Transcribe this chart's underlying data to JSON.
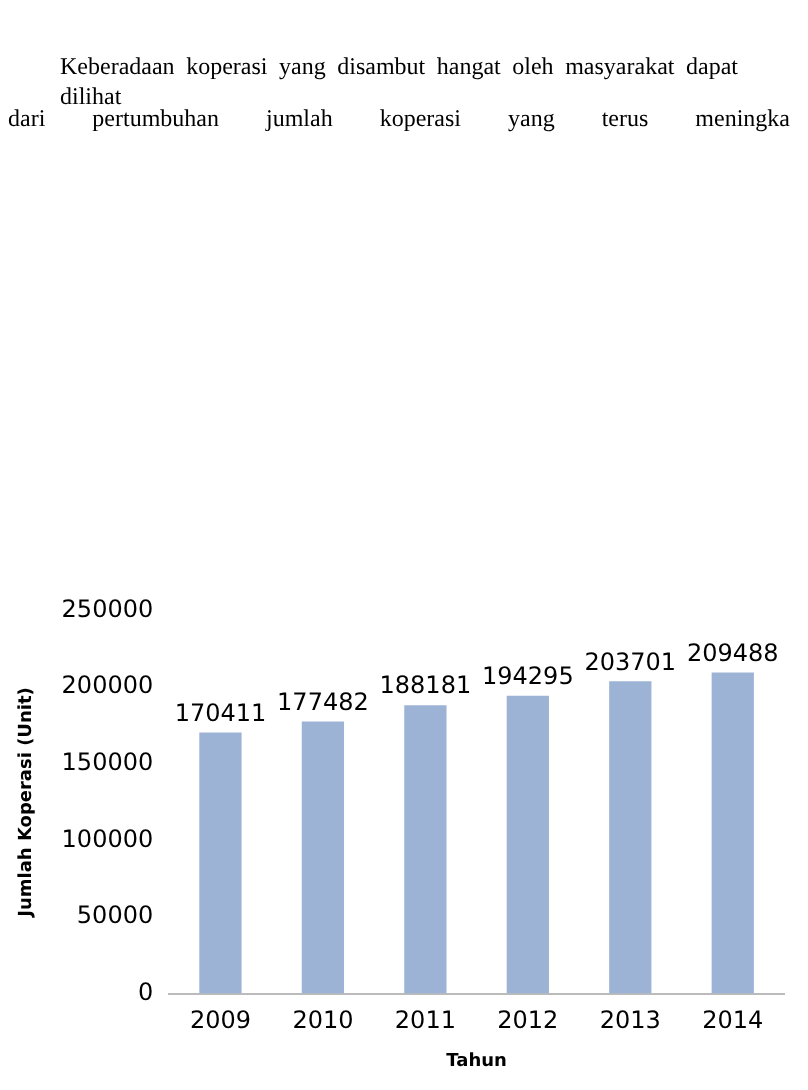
{
  "chart_data": {
    "type": "bar",
    "annotations": [
      "Keberadaan koperasi yang disambut hangat oleh masyarakat dapat dilihat",
      "dari pertumbuhan jumlah koperasi yang terus meningka"
    ],
    "xlabel": "Tahun",
    "ylabel": "Jumlah Koperasi (Unit)",
    "categories": [
      "2009",
      "2010",
      "2011",
      "2012",
      "2013",
      "2014"
    ],
    "values": [
      170411,
      177482,
      188181,
      194295,
      203701,
      209488
    ],
    "color": "#9db3d6",
    "ylim": [
      0,
      250000
    ],
    "yticks": [
      0,
      50000,
      100000,
      150000,
      200000,
      250000
    ],
    "data_labels": true,
    "grid": false,
    "legend": false
  }
}
